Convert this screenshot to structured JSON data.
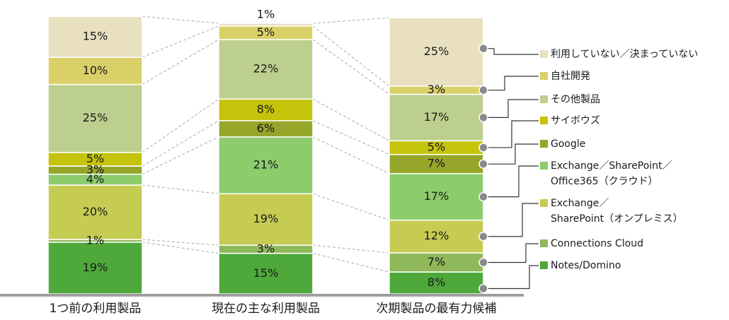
{
  "chart_data": {
    "type": "bar",
    "stacked": true,
    "normalized": true,
    "title": "",
    "xlabel": "",
    "ylabel": "",
    "ylim": [
      0,
      100
    ],
    "grid": false,
    "legend_position": "right",
    "categories": [
      "1つ前の利用製品",
      "現在の主な利用製品",
      "次期製品の最有力候補"
    ],
    "series": [
      {
        "name": "Notes/Domino",
        "legend_lines": [
          "Notes/Domino"
        ],
        "color": "#4ea83a",
        "values": [
          19,
          15,
          8
        ],
        "labels": [
          "19%",
          "15%",
          "8%"
        ]
      },
      {
        "name": "Connections Cloud",
        "legend_lines": [
          "Connections Cloud"
        ],
        "color": "#8fb85a",
        "values": [
          1,
          3,
          7
        ],
        "labels": [
          "1%",
          "3%",
          "7%"
        ]
      },
      {
        "name": "Exchange／SharePoint（オンプレミス）",
        "legend_lines": [
          "Exchange／",
          "SharePoint（オンプレミス）"
        ],
        "color": "#c6cb52",
        "values": [
          20,
          19,
          12
        ],
        "labels": [
          "20%",
          "19%",
          "12%"
        ]
      },
      {
        "name": "Exchange／SharePoint／Office365（クラウド）",
        "legend_lines": [
          "Exchange／SharePoint／",
          "Office365（クラウド）"
        ],
        "color": "#8ccc6c",
        "values": [
          4,
          21,
          17
        ],
        "labels": [
          "4%",
          "21%",
          "17%"
        ]
      },
      {
        "name": "Google",
        "legend_lines": [
          "Google"
        ],
        "color": "#96a62a",
        "values": [
          3,
          6,
          7
        ],
        "labels": [
          "3%",
          "6%",
          "7%"
        ]
      },
      {
        "name": "サイボウズ",
        "legend_lines": [
          "サイボウズ"
        ],
        "color": "#c4c40a",
        "values": [
          5,
          8,
          5
        ],
        "labels": [
          "5%",
          "8%",
          "5%"
        ]
      },
      {
        "name": "その他製品",
        "legend_lines": [
          "その他製品"
        ],
        "color": "#bdcf8e",
        "values": [
          25,
          22,
          17
        ],
        "labels": [
          "25%",
          "22%",
          "17%"
        ]
      },
      {
        "name": "自社開発",
        "legend_lines": [
          "自社開発"
        ],
        "color": "#dad068",
        "values": [
          10,
          5,
          3
        ],
        "labels": [
          "10%",
          "5%",
          "3%"
        ]
      },
      {
        "name": "利用していない／決まっていない",
        "legend_lines": [
          "利用していない／決まっていない"
        ],
        "color": "#e8e0bf",
        "values": [
          15,
          1,
          25
        ],
        "labels": [
          "15%",
          "1%",
          "25%"
        ]
      }
    ]
  }
}
